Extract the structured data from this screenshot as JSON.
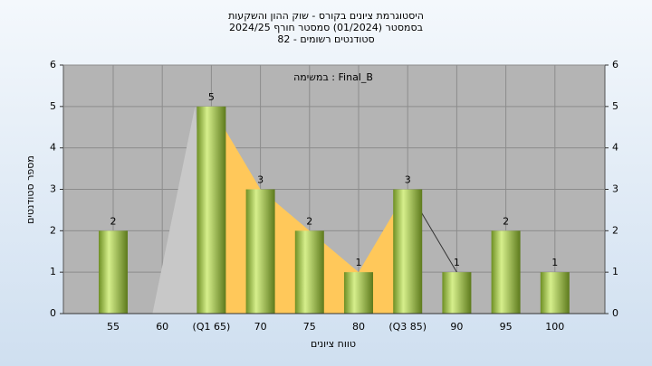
{
  "chart_data": {
    "type": "bar",
    "title": "היסטוגרמת ציונים בקורס - שוק ההון והשקעות",
    "subtitle": "בסמסטר  (01/2024)  סמסטר חורף 2024/25",
    "subtitle2": "סטודנטים רשומים - 82",
    "annotation": "במשימה : Final_B",
    "xlabel": "טווח ציונים",
    "ylabel": "מספר סטודנטים",
    "categories": [
      "55",
      "60",
      "(Q1 65)",
      "70",
      "75",
      "80",
      "(Q3 85)",
      "90",
      "95",
      "100"
    ],
    "values": [
      2,
      0,
      5,
      3,
      2,
      1,
      3,
      1,
      2,
      1
    ],
    "value_labels": [
      "2",
      null,
      "5",
      "3",
      "2",
      "1",
      "3",
      "1",
      "2",
      "1"
    ],
    "color": "#9cc444",
    "ylim": [
      0,
      6
    ],
    "yticks": [
      0,
      1,
      2,
      3,
      4,
      5,
      6
    ],
    "y2lim": [
      0,
      6
    ],
    "y2ticks": [
      0,
      1,
      2,
      3,
      4,
      5,
      6
    ],
    "grid": true
  }
}
